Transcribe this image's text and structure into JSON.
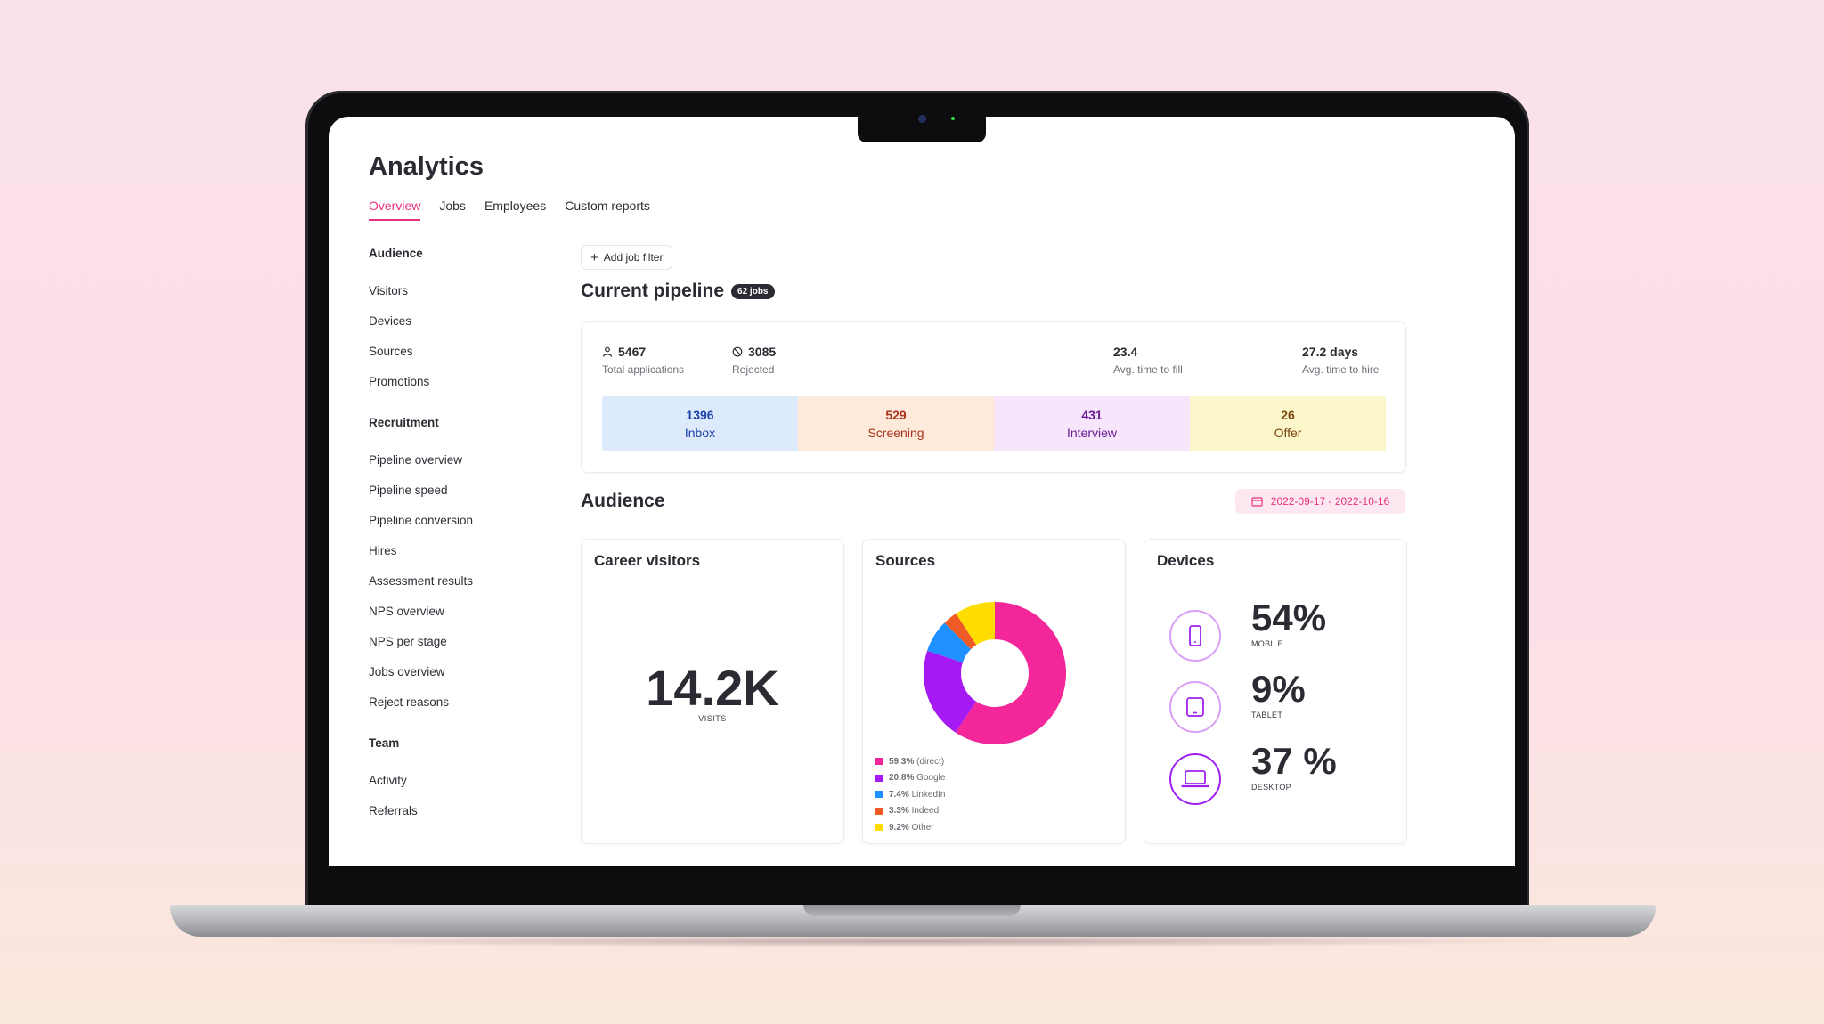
{
  "app": {
    "title": "Analytics",
    "tabs": [
      {
        "label": "Overview",
        "active": true
      },
      {
        "label": "Jobs"
      },
      {
        "label": "Employees"
      },
      {
        "label": "Custom reports"
      }
    ]
  },
  "sidebar": {
    "groups": [
      {
        "title": "Audience",
        "items": [
          "Visitors",
          "Devices",
          "Sources",
          "Promotions"
        ]
      },
      {
        "title": "Recruitment",
        "items": [
          "Pipeline overview",
          "Pipeline speed",
          "Pipeline conversion",
          "Hires",
          "Assessment results",
          "NPS overview",
          "NPS per stage",
          "Jobs overview",
          "Reject reasons"
        ]
      },
      {
        "title": "Team",
        "items": [
          "Activity",
          "Referrals"
        ]
      }
    ]
  },
  "filter": {
    "add_label": "Add job filter"
  },
  "pipeline": {
    "title": "Current pipeline",
    "badge": "62 jobs",
    "stats": [
      {
        "value": "5467",
        "label": "Total applications",
        "icon": "user-icon"
      },
      {
        "value": "3085",
        "label": "Rejected",
        "icon": "ban-icon"
      },
      {
        "value": "23.4",
        "label": "Avg. time to fill"
      },
      {
        "value": "27.2 days",
        "label": "Avg. time to hire"
      }
    ],
    "stages": [
      {
        "value": "1396",
        "label": "Inbox",
        "bg": "#dceafc",
        "color": "#1c3fa8"
      },
      {
        "value": "529",
        "label": "Screening",
        "bg": "#fdeadb",
        "color": "#a8331c"
      },
      {
        "value": "431",
        "label": "Interview",
        "bg": "#f7e6fb",
        "color": "#6b1d98"
      },
      {
        "value": "26",
        "label": "Offer",
        "bg": "#fcf6cb",
        "color": "#7a4a0f"
      }
    ]
  },
  "audience": {
    "title": "Audience",
    "date_range": "2022-09-17 - 2022-10-16",
    "career_visitors": {
      "title": "Career visitors",
      "value": "14.2K",
      "label": "VISITS"
    },
    "sources": {
      "title": "Sources"
    },
    "devices": {
      "title": "Devices",
      "items": [
        {
          "pct": "54%",
          "label": "MOBILE",
          "icon": "mobile-icon"
        },
        {
          "pct": "9%",
          "label": "TABLET",
          "icon": "tablet-icon"
        },
        {
          "pct": "37 %",
          "label": "DESKTOP",
          "icon": "laptop-icon"
        }
      ]
    }
  },
  "chart_data": {
    "type": "pie",
    "donut": true,
    "title": "Sources",
    "categories": [
      "(direct)",
      "Google",
      "LinkedIn",
      "Indeed",
      "Other"
    ],
    "values": [
      59.3,
      20.8,
      7.4,
      3.3,
      9.2
    ],
    "value_labels": [
      "59.3%",
      "20.8%",
      "7.4%",
      "3.3%",
      "9.2%"
    ],
    "colors": [
      "#f4279a",
      "#a519f2",
      "#1e90ff",
      "#f05a24",
      "#ffdc00"
    ],
    "legend_position": "bottom-left"
  }
}
